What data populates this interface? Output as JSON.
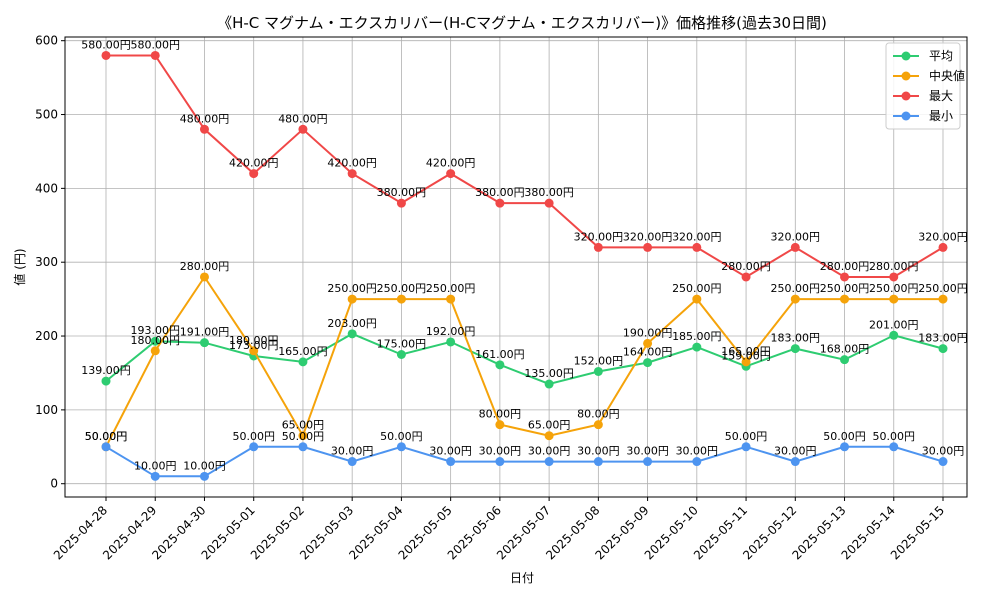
{
  "chart_data": {
    "type": "line",
    "title": "《H-C マグナム・エクスカリバー(H-Cマグナム・エクスカリバー)》価格推移(過去30日間)",
    "xlabel": "日付",
    "ylabel": "値 (円)",
    "ylim": [
      -18,
      605
    ],
    "yticks": [
      0,
      100,
      200,
      300,
      400,
      500,
      600
    ],
    "grid": true,
    "legend_position": "top-right",
    "label_suffix": "円",
    "categories": [
      "2025-04-28",
      "2025-04-29",
      "2025-04-30",
      "2025-05-01",
      "2025-05-02",
      "2025-05-03",
      "2025-05-04",
      "2025-05-05",
      "2025-05-06",
      "2025-05-07",
      "2025-05-08",
      "2025-05-09",
      "2025-05-10",
      "2025-05-11",
      "2025-05-12",
      "2025-05-13",
      "2025-05-14",
      "2025-05-15"
    ],
    "series": [
      {
        "name": "平均",
        "color": "#2ecc71",
        "values": [
          139,
          193,
          191,
          173,
          165,
          203,
          175,
          192,
          161,
          135,
          152,
          164,
          185,
          159,
          183,
          168,
          201,
          183
        ]
      },
      {
        "name": "中央値",
        "color": "#f5a30a",
        "values": [
          50,
          180,
          280,
          180,
          65,
          250,
          250,
          250,
          80,
          65,
          80,
          190,
          250,
          165,
          250,
          250,
          250,
          250
        ]
      },
      {
        "name": "最大",
        "color": "#f04848",
        "values": [
          580,
          580,
          480,
          420,
          480,
          420,
          380,
          420,
          380,
          380,
          320,
          320,
          320,
          280,
          320,
          280,
          280,
          320
        ]
      },
      {
        "name": "最小",
        "color": "#4d94f0",
        "values": [
          50,
          10,
          10,
          50,
          50,
          30,
          50,
          30,
          30,
          30,
          30,
          30,
          30,
          50,
          30,
          50,
          50,
          30
        ]
      }
    ]
  }
}
